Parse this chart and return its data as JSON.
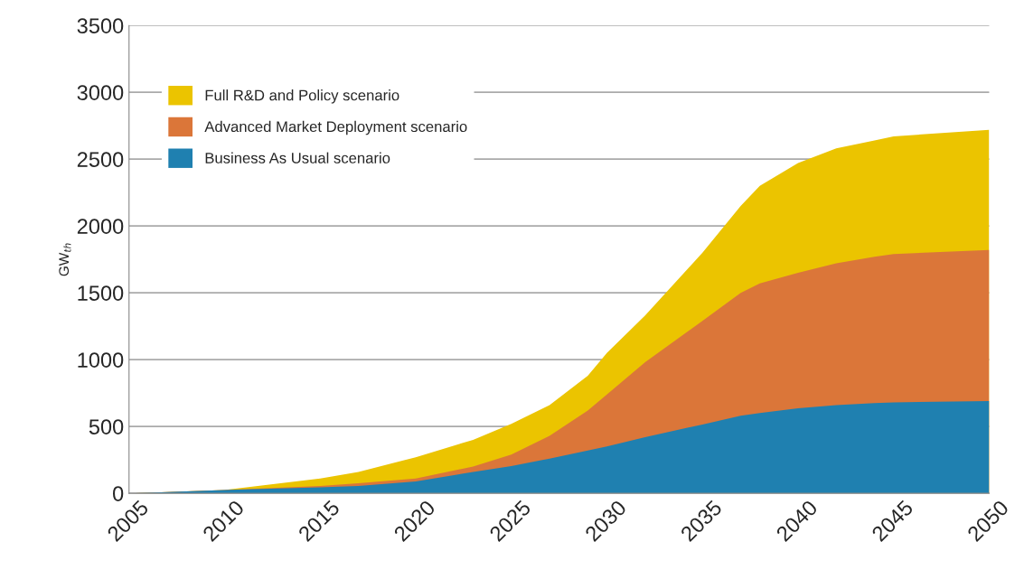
{
  "chart_data": {
    "type": "area",
    "ylabel": "GW$_{th}$",
    "xlim": [
      2005,
      2050
    ],
    "xticks": [
      2005,
      2010,
      2015,
      2020,
      2025,
      2030,
      2035,
      2040,
      2045,
      2050
    ],
    "ylim": [
      0,
      3500
    ],
    "yticks": [
      0,
      500,
      1000,
      1500,
      2000,
      2500,
      3000,
      3500
    ],
    "grid": "y",
    "legend": "top left",
    "series": [
      {
        "name": "Full R&D and Policy scenario",
        "color": "#ebc400",
        "x": [
          2005,
          2010,
          2015,
          2017,
          2020,
          2023,
          2025,
          2027,
          2029,
          2030,
          2032,
          2035,
          2037,
          2038,
          2040,
          2042,
          2044,
          2045,
          2050
        ],
        "values": [
          0,
          25,
          110,
          160,
          270,
          400,
          520,
          660,
          880,
          1050,
          1330,
          1800,
          2150,
          2300,
          2470,
          2580,
          2640,
          2670,
          2720
        ]
      },
      {
        "name": "Advanced Market Deployment scenario",
        "color": "#db7639",
        "x": [
          2005,
          2010,
          2015,
          2017,
          2020,
          2023,
          2025,
          2027,
          2029,
          2030,
          2032,
          2035,
          2037,
          2038,
          2040,
          2042,
          2044,
          2045,
          2050
        ],
        "values": [
          0,
          25,
          55,
          75,
          110,
          200,
          290,
          430,
          620,
          740,
          980,
          1290,
          1500,
          1570,
          1650,
          1720,
          1770,
          1790,
          1820
        ]
      },
      {
        "name": "Business As Usual scenario",
        "color": "#1f80b0",
        "x": [
          2005,
          2010,
          2015,
          2017,
          2020,
          2023,
          2025,
          2027,
          2029,
          2030,
          2032,
          2035,
          2037,
          2038,
          2040,
          2042,
          2044,
          2045,
          2050
        ],
        "values": [
          0,
          25,
          45,
          55,
          88,
          160,
          203,
          260,
          320,
          350,
          420,
          515,
          580,
          600,
          636,
          660,
          675,
          680,
          690
        ]
      }
    ]
  }
}
